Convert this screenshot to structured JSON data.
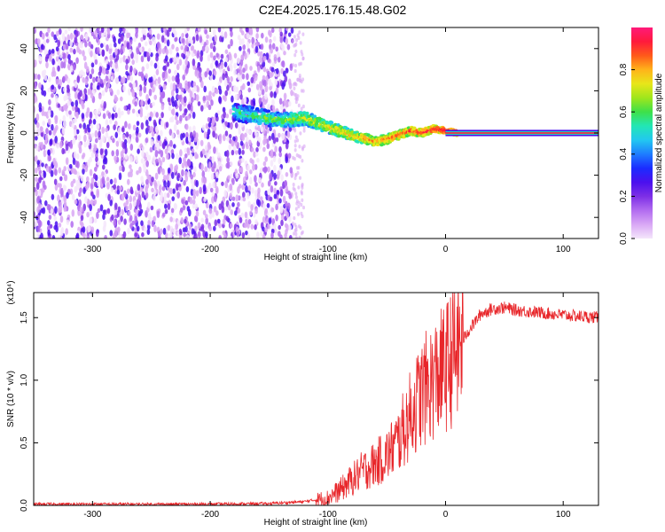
{
  "title": "C2E4.2025.176.15.48.G02",
  "chart_data": [
    {
      "type": "heatmap",
      "title": "",
      "xlabel": "Height of straight line (km)",
      "ylabel": "Frequency (Hz)",
      "xlim": [
        -350,
        130
      ],
      "ylim": [
        -50,
        50
      ],
      "x_ticks": [
        -300,
        -200,
        -100,
        0,
        100
      ],
      "y_ticks": [
        -40,
        -20,
        0,
        20,
        40
      ],
      "colorbar": {
        "label": "Normalized spectral amplitude",
        "range": [
          0,
          1
        ],
        "ticks": [
          0.0,
          0.2,
          0.4,
          0.6,
          0.8
        ],
        "colors": [
          "#f4e6fb",
          "#d9a8f5",
          "#b26cf0",
          "#7d2fe6",
          "#4b10ee",
          "#1b2cff",
          "#1e7dff",
          "#22c8f0",
          "#22e6b5",
          "#3ee04a",
          "#9fe61c",
          "#e8e61a",
          "#ffb31a",
          "#ff5a1a",
          "#ff1a3c",
          "#ff1a7a"
        ]
      },
      "signal_track": {
        "x": [
          -180,
          -160,
          -140,
          -120,
          -100,
          -80,
          -60,
          -50,
          -40,
          -30,
          -20,
          -10,
          0,
          10,
          130
        ],
        "freq": [
          10,
          8,
          6,
          7,
          3,
          -1,
          -4,
          -3,
          -1,
          1,
          0,
          2,
          1,
          0,
          0
        ]
      },
      "noise_region": {
        "x": [
          -350,
          -130
        ],
        "freq": [
          -50,
          50
        ]
      }
    },
    {
      "type": "line",
      "title": "",
      "xlabel": "Height of straight line (km)",
      "ylabel": "SNR (10 * v/v)",
      "y_multiplier": "(x10⁴)",
      "xlim": [
        -350,
        130
      ],
      "ylim": [
        0,
        1.7
      ],
      "x_ticks": [
        -300,
        -200,
        -100,
        0,
        100
      ],
      "y_ticks": [
        "0.0",
        "0.5",
        "1.0",
        "1.5"
      ],
      "series": [
        {
          "color": "#e8262a",
          "x": [
            -350,
            -300,
            -250,
            -200,
            -150,
            -120,
            -100,
            -90,
            -80,
            -70,
            -60,
            -50,
            -40,
            -30,
            -20,
            -10,
            0,
            10,
            20,
            30,
            40,
            50,
            60,
            80,
            100,
            130
          ],
          "y": [
            0.01,
            0.01,
            0.01,
            0.01,
            0.015,
            0.03,
            0.06,
            0.12,
            0.2,
            0.28,
            0.33,
            0.4,
            0.52,
            0.72,
            0.9,
            1.0,
            1.1,
            1.25,
            1.4,
            1.53,
            1.57,
            1.58,
            1.56,
            1.54,
            1.52,
            1.5
          ]
        }
      ]
    }
  ]
}
